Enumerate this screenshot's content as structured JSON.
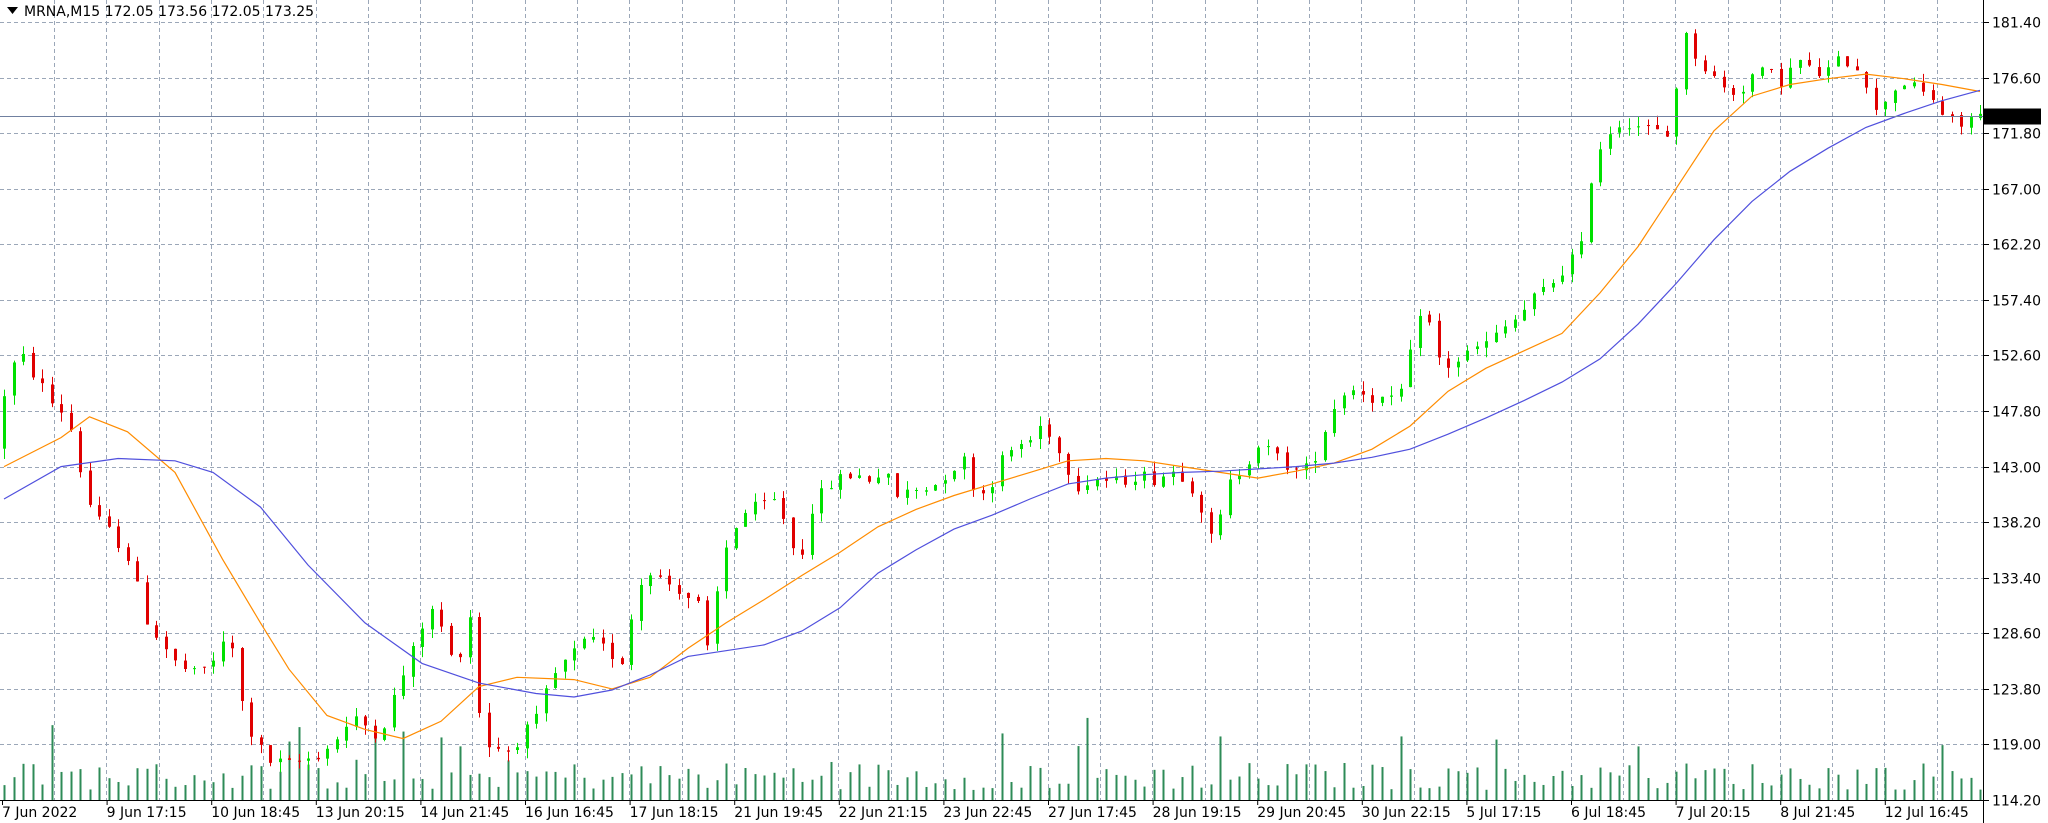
{
  "header": {
    "symbol": "MRNA,M15",
    "open": "172.05",
    "high": "173.56",
    "low": "172.05",
    "close": "173.25"
  },
  "colors": {
    "background": "#ffffff",
    "grid": "#9ba7b8",
    "bull_candle": "#00e000",
    "bear_candle": "#e00000",
    "ma_fast": "#ff8c00",
    "ma_slow": "#5050dd",
    "price_line": "#7080a0",
    "volume": "#2e8b57",
    "price_tag_bg": "#000000",
    "price_tag_text": "#ffffff"
  },
  "chart_data": {
    "type": "line",
    "instrument": "MRNA",
    "timeframe": "M15",
    "current_price": 173.25,
    "price_axis": {
      "ticks": [
        181.4,
        176.6,
        171.8,
        167.0,
        162.2,
        157.4,
        152.6,
        147.8,
        143.0,
        138.2,
        133.4,
        128.6,
        123.8,
        119.0,
        114.2
      ],
      "tick_labels": [
        "181.40",
        "176.60",
        "171.80",
        "167.00",
        "162.20",
        "157.40",
        "152.60",
        "147.80",
        "143.00",
        "138.20",
        "133.40",
        "128.60",
        "123.80",
        "119.00",
        "114.20"
      ],
      "range": [
        114.2,
        183.5
      ]
    },
    "time_axis": {
      "labels": [
        "7 Jun 2022",
        "9 Jun 17:15",
        "10 Jun 18:45",
        "13 Jun 20:15",
        "14 Jun 21:45",
        "16 Jun 16:45",
        "17 Jun 18:15",
        "21 Jun 19:45",
        "22 Jun 21:15",
        "23 Jun 22:45",
        "27 Jun 17:45",
        "28 Jun 19:15",
        "29 Jun 20:45",
        "30 Jun 22:15",
        "5 Jul 17:15",
        "6 Jul 18:45",
        "7 Jul 20:15",
        "8 Jul 21:45",
        "12 Jul 16:45"
      ]
    },
    "grid": true,
    "price_path": [
      [
        0,
        145
      ],
      [
        1.5,
        151.5
      ],
      [
        3,
        152.3
      ],
      [
        4.5,
        150.5
      ],
      [
        6,
        148.5
      ],
      [
        7.5,
        147.5
      ],
      [
        8.5,
        145
      ],
      [
        9.5,
        140.5
      ],
      [
        11,
        138.2
      ],
      [
        13,
        136.5
      ],
      [
        14.5,
        134.5
      ],
      [
        15.5,
        130.5
      ],
      [
        17,
        128.5
      ],
      [
        19,
        126
      ],
      [
        21,
        125
      ],
      [
        22.5,
        125.8
      ],
      [
        24,
        127.5
      ],
      [
        24.8,
        128.5
      ],
      [
        25.5,
        124
      ],
      [
        26.5,
        121
      ],
      [
        27.5,
        119
      ],
      [
        29,
        117.5
      ],
      [
        31,
        117.2
      ],
      [
        33,
        117.8
      ],
      [
        34.5,
        118.4
      ],
      [
        35.5,
        119
      ],
      [
        36.5,
        120.2
      ],
      [
        38,
        121
      ],
      [
        39.5,
        120.5
      ],
      [
        40.5,
        119.8
      ],
      [
        42,
        123
      ],
      [
        44,
        127
      ],
      [
        45.5,
        130.5
      ],
      [
        46.5,
        130.3
      ],
      [
        47.5,
        128
      ],
      [
        48.5,
        125
      ],
      [
        49.5,
        129.3
      ],
      [
        50.2,
        130.5
      ],
      [
        50.8,
        122.5
      ],
      [
        52,
        119
      ],
      [
        54,
        118.5
      ],
      [
        55.5,
        119.8
      ],
      [
        57,
        121
      ],
      [
        58.5,
        124.5
      ],
      [
        60.5,
        126.5
      ],
      [
        62.5,
        128
      ],
      [
        64.5,
        127
      ],
      [
        66,
        126.3
      ],
      [
        67,
        130
      ],
      [
        68,
        133
      ],
      [
        69,
        134.2
      ],
      [
        70,
        133.3
      ],
      [
        72,
        132.5
      ],
      [
        74,
        131
      ],
      [
        75,
        127
      ],
      [
        76.5,
        134.5
      ],
      [
        77.5,
        137.5
      ],
      [
        79,
        139
      ],
      [
        80.5,
        139.5
      ],
      [
        82,
        140
      ],
      [
        83.5,
        138
      ],
      [
        84.5,
        134
      ],
      [
        86,
        139.5
      ],
      [
        88,
        141.5
      ],
      [
        90,
        142.3
      ],
      [
        92,
        142
      ],
      [
        93.5,
        142.5
      ],
      [
        95,
        140.5
      ],
      [
        97,
        141
      ],
      [
        99,
        141.5
      ],
      [
        100.5,
        142.8
      ],
      [
        102,
        143.5
      ],
      [
        103.5,
        140.5
      ],
      [
        104.5,
        141
      ],
      [
        106,
        143.5
      ],
      [
        107.5,
        144.8
      ],
      [
        109,
        145.3
      ],
      [
        110.5,
        147
      ],
      [
        112,
        144.2
      ],
      [
        114,
        141.5
      ],
      [
        116,
        142
      ],
      [
        118,
        141.6
      ],
      [
        120,
        142.3
      ],
      [
        122,
        142
      ],
      [
        124,
        142.6
      ],
      [
        125.5,
        142.2
      ],
      [
        127,
        139.5
      ],
      [
        128,
        136.7
      ],
      [
        129,
        138.5
      ],
      [
        130,
        141.5
      ],
      [
        131.5,
        143.2
      ],
      [
        133,
        145
      ],
      [
        134.5,
        144
      ],
      [
        136,
        143.2
      ],
      [
        137.5,
        142.3
      ],
      [
        138.5,
        143.2
      ],
      [
        139.5,
        145
      ],
      [
        140.5,
        147.5
      ],
      [
        142,
        149.5
      ],
      [
        143.5,
        149.8
      ],
      [
        145,
        149
      ],
      [
        147,
        148.5
      ],
      [
        148,
        149.5
      ],
      [
        149,
        152.5
      ],
      [
        150,
        156.5
      ],
      [
        150.5,
        157.5
      ],
      [
        151.5,
        153
      ],
      [
        152.5,
        151.5
      ],
      [
        154,
        152.2
      ],
      [
        156,
        153.2
      ],
      [
        157.5,
        153.8
      ],
      [
        159,
        155
      ],
      [
        160.5,
        156
      ],
      [
        162,
        157.5
      ],
      [
        163.5,
        158.5
      ],
      [
        165,
        160
      ],
      [
        166,
        161
      ],
      [
        166.8,
        160.2
      ],
      [
        167.5,
        166
      ],
      [
        168.5,
        170
      ],
      [
        170,
        172
      ],
      [
        171.5,
        173
      ],
      [
        173,
        172.5
      ],
      [
        175,
        171.8
      ],
      [
        176.5,
        171.4
      ],
      [
        177,
        176
      ],
      [
        178,
        180
      ],
      [
        179.5,
        178
      ],
      [
        181,
        176.5
      ],
      [
        182.5,
        175.2
      ],
      [
        184,
        175.8
      ],
      [
        185,
        176.8
      ],
      [
        186.5,
        177
      ],
      [
        188,
        176.4
      ],
      [
        190,
        178
      ],
      [
        191.5,
        176.8
      ],
      [
        193,
        177.2
      ],
      [
        194.5,
        178.3
      ],
      [
        196,
        177.6
      ],
      [
        197,
        176.3
      ],
      [
        198,
        173.5
      ],
      [
        199.5,
        175.5
      ],
      [
        201,
        176.2
      ],
      [
        202.5,
        175.4
      ],
      [
        204,
        174.8
      ],
      [
        205.5,
        172.8
      ],
      [
        207,
        172.5
      ],
      [
        208.3,
        173.25
      ]
    ],
    "series": [
      {
        "values": [
          [
            0,
            143
          ],
          [
            6,
            145.5
          ],
          [
            9,
            147.3
          ],
          [
            13,
            146
          ],
          [
            18,
            142.5
          ],
          [
            23,
            135
          ],
          [
            27,
            129.5
          ],
          [
            30,
            125.5
          ],
          [
            34,
            121.5
          ],
          [
            38,
            120.3
          ],
          [
            42,
            119.5
          ],
          [
            46,
            121
          ],
          [
            50,
            124
          ],
          [
            54,
            124.8
          ],
          [
            60,
            124.6
          ],
          [
            64,
            123.8
          ],
          [
            68,
            124.8
          ],
          [
            72,
            127.3
          ],
          [
            76,
            129.5
          ],
          [
            80,
            131.5
          ],
          [
            84,
            133.6
          ],
          [
            88,
            135.6
          ],
          [
            92,
            137.8
          ],
          [
            96,
            139.3
          ],
          [
            100,
            140.5
          ],
          [
            104,
            141.5
          ],
          [
            108,
            142.5
          ],
          [
            112,
            143.5
          ],
          [
            116,
            143.7
          ],
          [
            120,
            143.5
          ],
          [
            124,
            143
          ],
          [
            128,
            142.5
          ],
          [
            132,
            142
          ],
          [
            136,
            142.6
          ],
          [
            140,
            143.3
          ],
          [
            144,
            144.5
          ],
          [
            148,
            146.5
          ],
          [
            152,
            149.5
          ],
          [
            156,
            151.5
          ],
          [
            160,
            153
          ],
          [
            164,
            154.5
          ],
          [
            168,
            158
          ],
          [
            172,
            162
          ],
          [
            176,
            167
          ],
          [
            180,
            172
          ],
          [
            184,
            175
          ],
          [
            188,
            176
          ],
          [
            192,
            176.5
          ],
          [
            196,
            176.9
          ],
          [
            200,
            176.5
          ],
          [
            204,
            176
          ],
          [
            208,
            175.4
          ]
        ]
      },
      {
        "values": [
          [
            0,
            140.2
          ],
          [
            6,
            143
          ],
          [
            12,
            143.7
          ],
          [
            18,
            143.5
          ],
          [
            22,
            142.5
          ],
          [
            27,
            139.5
          ],
          [
            32,
            134.5
          ],
          [
            38,
            129.5
          ],
          [
            44,
            126
          ],
          [
            50,
            124.3
          ],
          [
            56,
            123.4
          ],
          [
            60,
            123.1
          ],
          [
            64,
            123.7
          ],
          [
            68,
            125
          ],
          [
            72,
            126.6
          ],
          [
            76,
            127.1
          ],
          [
            80,
            127.6
          ],
          [
            84,
            128.8
          ],
          [
            88,
            130.8
          ],
          [
            92,
            133.8
          ],
          [
            96,
            135.8
          ],
          [
            100,
            137.6
          ],
          [
            104,
            138.8
          ],
          [
            108,
            140.2
          ],
          [
            112,
            141.5
          ],
          [
            116,
            142
          ],
          [
            120,
            142.3
          ],
          [
            124,
            142.5
          ],
          [
            128,
            142.6
          ],
          [
            132,
            142.8
          ],
          [
            136,
            143
          ],
          [
            140,
            143.3
          ],
          [
            144,
            143.8
          ],
          [
            148,
            144.5
          ],
          [
            152,
            145.8
          ],
          [
            156,
            147.2
          ],
          [
            160,
            148.7
          ],
          [
            164,
            150.3
          ],
          [
            168,
            152.3
          ],
          [
            172,
            155.3
          ],
          [
            176,
            158.8
          ],
          [
            180,
            162.6
          ],
          [
            184,
            165.9
          ],
          [
            188,
            168.5
          ],
          [
            192,
            170.5
          ],
          [
            196,
            172.3
          ],
          [
            200,
            173.5
          ],
          [
            204,
            174.6
          ],
          [
            208,
            175.5
          ]
        ]
      }
    ]
  }
}
